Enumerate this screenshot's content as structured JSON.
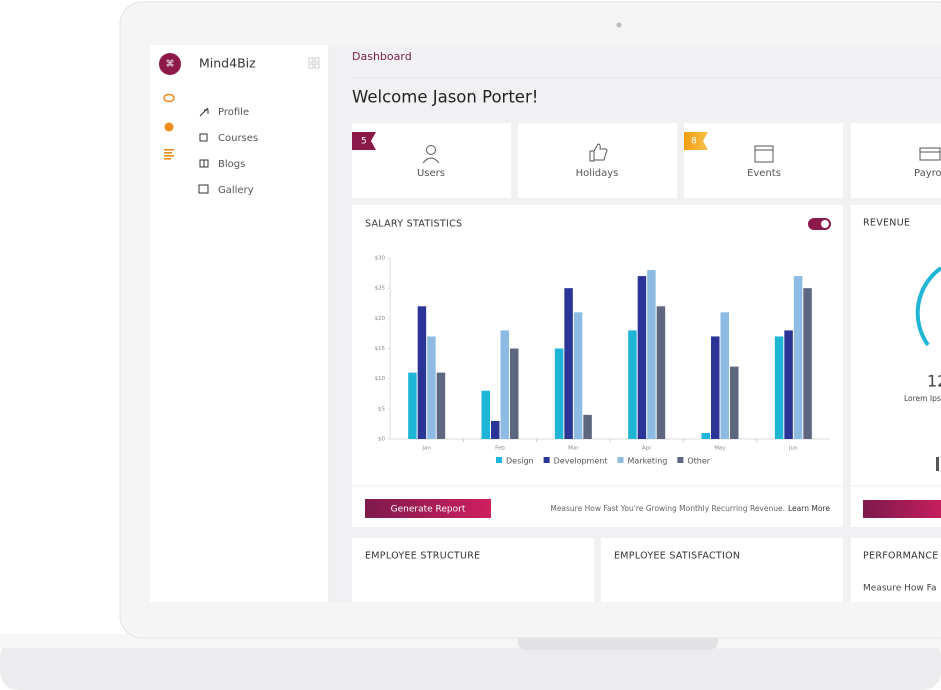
{
  "sidebar": {
    "brand": "Mind4Biz",
    "menu": [
      "Profile",
      "Courses",
      "Blogs",
      "Gallery"
    ]
  },
  "breadcrumb": "Dashboard",
  "welcome": "Welcome Jason Porter!",
  "stat_cards": [
    {
      "badge": "5",
      "label": "Users"
    },
    {
      "label": "Holidays"
    },
    {
      "badge": "8",
      "label": "Events"
    },
    {
      "label": "Payro"
    }
  ],
  "salary_statistics": {
    "title": "SALARY STATISTICS",
    "chart_data": {
      "type": "bar",
      "categories": [
        "Jan",
        "Feb",
        "Mar",
        "Apr",
        "May",
        "Jun"
      ],
      "series": [
        {
          "name": "Design",
          "color": "#1fb5d6",
          "values": [
            11,
            8,
            15,
            18,
            1,
            17
          ]
        },
        {
          "name": "Development",
          "color": "#2b3597",
          "values": [
            22,
            3,
            25,
            27,
            17,
            18
          ]
        },
        {
          "name": "Marketing",
          "color": "#8dbbe3",
          "values": [
            17,
            18,
            21,
            28,
            21,
            27
          ]
        },
        {
          "name": "Other",
          "color": "#5e6780",
          "values": [
            11,
            15,
            4,
            22,
            12,
            25
          ]
        }
      ],
      "ylim": [
        0,
        30
      ],
      "yticks": [
        {
          "value": 0,
          "label": "$0"
        },
        {
          "value": 5,
          "label": "$5"
        },
        {
          "value": 10,
          "label": "$10"
        },
        {
          "value": 15,
          "label": "$15"
        },
        {
          "value": 20,
          "label": "$20"
        },
        {
          "value": 25,
          "label": "$25"
        },
        {
          "value": 30,
          "label": "$30"
        }
      ]
    },
    "button": "Generate Report",
    "note": "Measure How Fast You're Growing Monthly Recurring Revenue.",
    "link": "Learn More"
  },
  "revenue": {
    "title": "REVENUE",
    "value": "12",
    "caption": "Lorem Ips"
  },
  "employee_structure": {
    "title": "EMPLOYEE STRUCTURE"
  },
  "employee_satisfaction": {
    "title": "EMPLOYEE SATISFACTION"
  },
  "performance": {
    "title": "PERFORMANCE",
    "text": "Measure How Fa"
  }
}
